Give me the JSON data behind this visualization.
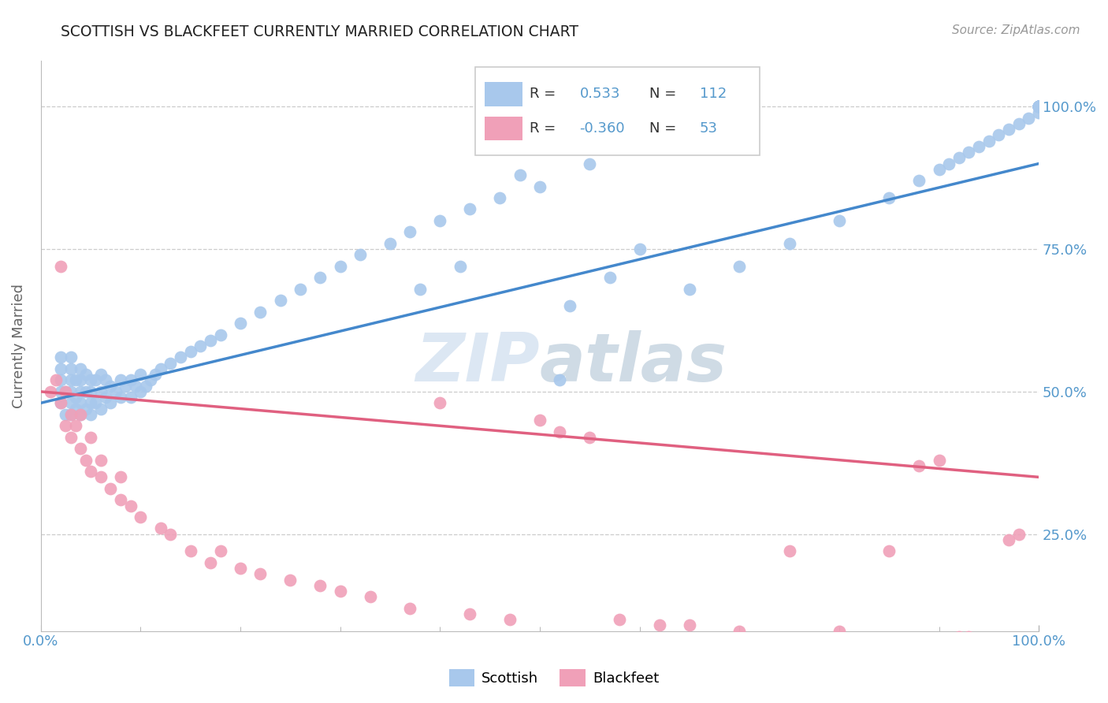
{
  "title": "SCOTTISH VS BLACKFEET CURRENTLY MARRIED CORRELATION CHART",
  "source_text": "Source: ZipAtlas.com",
  "ylabel": "Currently Married",
  "xlim": [
    0.0,
    1.0
  ],
  "ylim": [
    0.08,
    1.08
  ],
  "y_ticks": [
    0.25,
    0.5,
    0.75,
    1.0
  ],
  "y_tick_labels": [
    "25.0%",
    "50.0%",
    "75.0%",
    "100.0%"
  ],
  "scottish_R": 0.533,
  "scottish_N": 112,
  "blackfeet_R": -0.36,
  "blackfeet_N": 53,
  "blue_color": "#A8C8EC",
  "pink_color": "#F0A0B8",
  "blue_line_color": "#4488CC",
  "pink_line_color": "#E06080",
  "background_color": "#ffffff",
  "grid_color": "#cccccc",
  "title_color": "#222222",
  "tick_color": "#5599CC",
  "watermark_color": "#D8E8F4",
  "scottish_x": [
    0.02,
    0.02,
    0.02,
    0.02,
    0.02,
    0.025,
    0.025,
    0.03,
    0.03,
    0.03,
    0.03,
    0.03,
    0.03,
    0.035,
    0.035,
    0.035,
    0.04,
    0.04,
    0.04,
    0.04,
    0.04,
    0.045,
    0.045,
    0.045,
    0.05,
    0.05,
    0.05,
    0.05,
    0.055,
    0.055,
    0.06,
    0.06,
    0.06,
    0.065,
    0.065,
    0.07,
    0.07,
    0.075,
    0.08,
    0.08,
    0.085,
    0.09,
    0.09,
    0.095,
    0.1,
    0.1,
    0.105,
    0.11,
    0.115,
    0.12,
    0.13,
    0.14,
    0.15,
    0.16,
    0.17,
    0.18,
    0.2,
    0.22,
    0.24,
    0.26,
    0.28,
    0.3,
    0.32,
    0.35,
    0.37,
    0.4,
    0.43,
    0.46,
    0.5,
    0.52,
    0.55,
    0.38,
    0.42,
    0.48,
    0.53,
    0.57,
    0.6,
    0.65,
    0.7,
    0.75,
    0.8,
    0.85,
    0.88,
    0.9,
    0.91,
    0.92,
    0.93,
    0.94,
    0.95,
    0.96,
    0.97,
    0.98,
    0.99,
    1.0,
    1.0,
    1.0,
    1.0,
    1.0,
    1.0,
    1.0,
    1.0,
    1.0,
    1.0,
    1.0,
    1.0,
    1.0,
    1.0,
    1.0,
    1.0,
    1.0,
    1.0,
    1.0
  ],
  "scottish_y": [
    0.48,
    0.5,
    0.52,
    0.54,
    0.56,
    0.46,
    0.5,
    0.46,
    0.48,
    0.5,
    0.52,
    0.54,
    0.56,
    0.47,
    0.49,
    0.52,
    0.46,
    0.48,
    0.5,
    0.52,
    0.54,
    0.47,
    0.5,
    0.53,
    0.46,
    0.48,
    0.5,
    0.52,
    0.48,
    0.52,
    0.47,
    0.5,
    0.53,
    0.49,
    0.52,
    0.48,
    0.51,
    0.5,
    0.49,
    0.52,
    0.51,
    0.49,
    0.52,
    0.51,
    0.5,
    0.53,
    0.51,
    0.52,
    0.53,
    0.54,
    0.55,
    0.56,
    0.57,
    0.58,
    0.59,
    0.6,
    0.62,
    0.64,
    0.66,
    0.68,
    0.7,
    0.72,
    0.74,
    0.76,
    0.78,
    0.8,
    0.82,
    0.84,
    0.86,
    0.52,
    0.9,
    0.68,
    0.72,
    0.88,
    0.65,
    0.7,
    0.75,
    0.68,
    0.72,
    0.76,
    0.8,
    0.84,
    0.87,
    0.89,
    0.9,
    0.91,
    0.92,
    0.93,
    0.94,
    0.95,
    0.96,
    0.97,
    0.98,
    0.99,
    1.0,
    1.0,
    1.0,
    1.0,
    1.0,
    1.0,
    1.0,
    1.0,
    1.0,
    1.0,
    1.0,
    1.0,
    1.0,
    1.0,
    1.0,
    1.0,
    1.0,
    1.0
  ],
  "blackfeet_x": [
    0.01,
    0.015,
    0.02,
    0.02,
    0.025,
    0.025,
    0.03,
    0.03,
    0.035,
    0.04,
    0.04,
    0.045,
    0.05,
    0.05,
    0.06,
    0.06,
    0.07,
    0.08,
    0.08,
    0.09,
    0.1,
    0.12,
    0.13,
    0.15,
    0.17,
    0.18,
    0.2,
    0.22,
    0.25,
    0.28,
    0.3,
    0.33,
    0.37,
    0.4,
    0.43,
    0.47,
    0.5,
    0.52,
    0.55,
    0.58,
    0.62,
    0.65,
    0.7,
    0.75,
    0.8,
    0.85,
    0.88,
    0.9,
    0.92,
    0.93,
    0.95,
    0.97,
    0.98
  ],
  "blackfeet_y": [
    0.5,
    0.52,
    0.48,
    0.72,
    0.44,
    0.5,
    0.42,
    0.46,
    0.44,
    0.4,
    0.46,
    0.38,
    0.36,
    0.42,
    0.35,
    0.38,
    0.33,
    0.31,
    0.35,
    0.3,
    0.28,
    0.26,
    0.25,
    0.22,
    0.2,
    0.22,
    0.19,
    0.18,
    0.17,
    0.16,
    0.15,
    0.14,
    0.12,
    0.48,
    0.11,
    0.1,
    0.45,
    0.43,
    0.42,
    0.1,
    0.09,
    0.09,
    0.08,
    0.22,
    0.08,
    0.22,
    0.37,
    0.38,
    0.07,
    0.07,
    0.06,
    0.24,
    0.25
  ],
  "blue_line_start_y": 0.48,
  "blue_line_end_y": 0.9,
  "pink_line_start_y": 0.5,
  "pink_line_end_y": 0.35
}
